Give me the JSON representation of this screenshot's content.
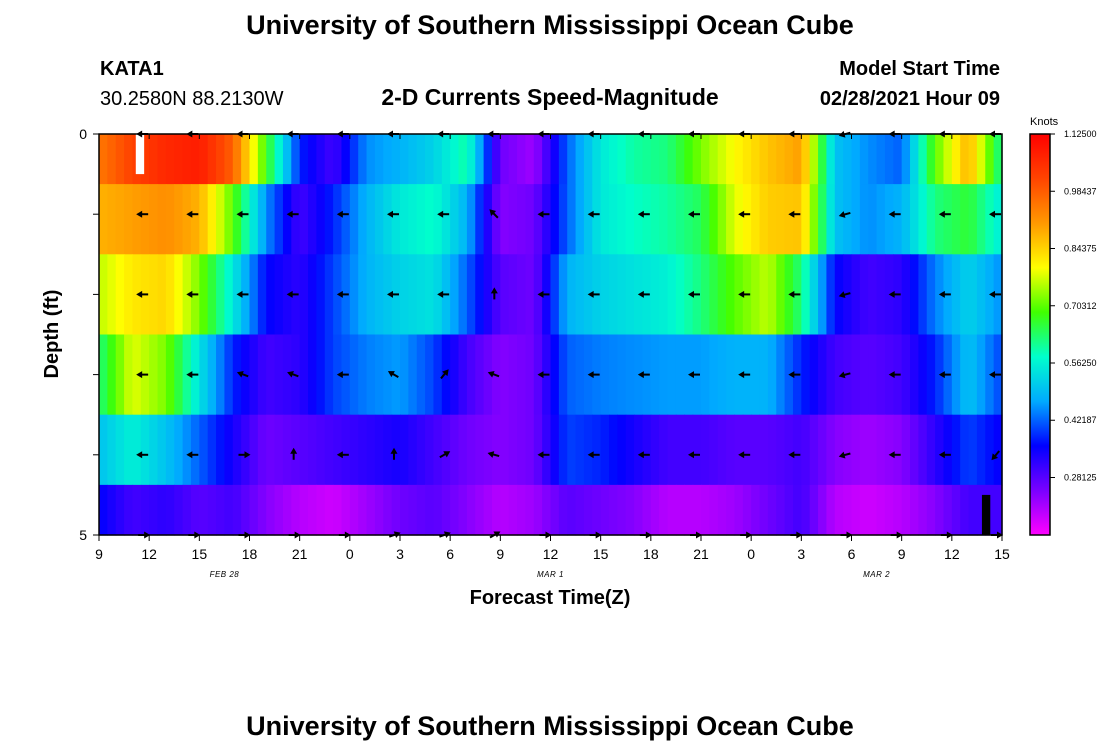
{
  "header": {
    "title": "University of Southern Mississippi Ocean Cube",
    "station": "KATA1",
    "coords": "30.2580N 88.2130W",
    "subtitle": "2-D Currents Speed-Magnitude",
    "model_label": "Model Start Time",
    "model_time": "02/28/2021 Hour 09"
  },
  "footer": {
    "title": "University of Southern Mississippi Ocean Cube"
  },
  "chart_data": {
    "type": "heatmap",
    "title": "2-D Currents Speed-Magnitude",
    "xlabel": "Forecast Time(Z)",
    "ylabel": "Depth (ft)",
    "x_tick_labels": [
      "9",
      "12",
      "15",
      "18",
      "21",
      "0",
      "3",
      "6",
      "9",
      "12",
      "15",
      "18",
      "21",
      "0",
      "3",
      "6",
      "9",
      "12",
      "15"
    ],
    "x_hours": [
      0,
      3,
      6,
      9,
      12,
      15,
      18,
      21,
      24,
      27,
      30,
      33,
      36,
      39,
      42,
      45,
      48,
      51,
      54
    ],
    "date_labels": [
      {
        "text": "FEB 28",
        "hour": 7.5
      },
      {
        "text": "MAR 1",
        "hour": 27
      },
      {
        "text": "MAR 2",
        "hour": 46.5
      }
    ],
    "xlim": [
      0,
      54
    ],
    "ylim": [
      5,
      0
    ],
    "y_tick_labels": [
      "0",
      "5"
    ],
    "y_ticks": [
      0,
      1,
      2,
      3,
      4,
      5
    ],
    "colorbar": {
      "unit": "Knots",
      "labels": [
        "1.12500",
        "0.98437",
        "0.84375",
        "0.70312",
        "0.56250",
        "0.42187",
        "0.28125"
      ],
      "min": 0.14,
      "max": 1.125,
      "colors": [
        "#ff00ff",
        "#7a00ff",
        "#0000ff",
        "#00aaff",
        "#00ffcc",
        "#40ff00",
        "#ffff00",
        "#ff9900",
        "#ff4400",
        "#ff0000"
      ]
    },
    "depth_rows": [
      0.25,
      1,
      2,
      3,
      4,
      4.75
    ],
    "speed_hours": [
      0,
      2,
      4,
      6,
      8,
      10,
      12,
      14,
      16,
      18,
      20,
      22,
      24,
      26,
      28,
      30,
      32,
      34,
      36,
      38,
      40,
      42,
      44,
      46,
      48,
      50,
      52,
      54
    ],
    "speed": [
      [
        0.95,
        1.02,
        1.06,
        1.08,
        0.98,
        0.68,
        0.38,
        0.3,
        0.45,
        0.48,
        0.52,
        0.6,
        0.26,
        0.22,
        0.42,
        0.55,
        0.6,
        0.62,
        0.72,
        0.8,
        0.86,
        0.9,
        0.5,
        0.45,
        0.42,
        0.7,
        0.88,
        0.6
      ],
      [
        0.88,
        0.9,
        0.92,
        0.88,
        0.7,
        0.45,
        0.3,
        0.38,
        0.48,
        0.55,
        0.58,
        0.48,
        0.24,
        0.26,
        0.42,
        0.55,
        0.58,
        0.6,
        0.64,
        0.78,
        0.85,
        0.86,
        0.5,
        0.45,
        0.48,
        0.62,
        0.66,
        0.55
      ],
      [
        0.76,
        0.82,
        0.84,
        0.72,
        0.55,
        0.36,
        0.32,
        0.4,
        0.48,
        0.52,
        0.54,
        0.42,
        0.28,
        0.26,
        0.48,
        0.52,
        0.54,
        0.56,
        0.62,
        0.7,
        0.76,
        0.62,
        0.36,
        0.3,
        0.32,
        0.44,
        0.52,
        0.45
      ],
      [
        0.62,
        0.78,
        0.72,
        0.54,
        0.38,
        0.3,
        0.32,
        0.4,
        0.44,
        0.46,
        0.4,
        0.3,
        0.24,
        0.26,
        0.42,
        0.44,
        0.45,
        0.46,
        0.46,
        0.48,
        0.48,
        0.38,
        0.3,
        0.28,
        0.3,
        0.38,
        0.5,
        0.4
      ],
      [
        0.5,
        0.56,
        0.5,
        0.42,
        0.34,
        0.26,
        0.28,
        0.3,
        0.32,
        0.34,
        0.3,
        0.26,
        0.24,
        0.26,
        0.4,
        0.38,
        0.34,
        0.3,
        0.3,
        0.28,
        0.28,
        0.3,
        0.24,
        0.22,
        0.24,
        0.32,
        0.4,
        0.35
      ],
      [
        0.36,
        0.3,
        0.32,
        0.28,
        0.3,
        0.24,
        0.2,
        0.18,
        0.22,
        0.26,
        0.28,
        0.24,
        0.2,
        0.22,
        0.28,
        0.26,
        0.24,
        0.2,
        0.2,
        0.22,
        0.26,
        0.3,
        0.2,
        0.18,
        0.2,
        0.24,
        0.3,
        0.3
      ]
    ],
    "arrow_hours": [
      3,
      6,
      9,
      12,
      15,
      18,
      21,
      24,
      27,
      30,
      33,
      36,
      39,
      42,
      45,
      48,
      51,
      54
    ],
    "arrow_depths": [
      0,
      1,
      2,
      3,
      4,
      5
    ],
    "arrow_dirs_deg": [
      [
        180,
        180,
        180,
        180,
        180,
        180,
        180,
        180,
        180,
        180,
        180,
        180,
        180,
        180,
        195,
        180,
        180,
        180
      ],
      [
        180,
        180,
        180,
        180,
        180,
        180,
        180,
        135,
        180,
        180,
        180,
        180,
        180,
        180,
        195,
        180,
        180,
        180
      ],
      [
        180,
        180,
        180,
        180,
        180,
        180,
        180,
        90,
        180,
        180,
        180,
        180,
        180,
        180,
        195,
        180,
        180,
        180
      ],
      [
        180,
        180,
        160,
        160,
        180,
        150,
        50,
        160,
        180,
        180,
        180,
        180,
        180,
        180,
        195,
        180,
        180,
        180
      ],
      [
        180,
        180,
        0,
        90,
        180,
        90,
        30,
        165,
        180,
        180,
        180,
        180,
        180,
        180,
        195,
        180,
        180,
        230
      ],
      [
        0,
        0,
        0,
        0,
        0,
        20,
        20,
        30,
        0,
        0,
        0,
        0,
        0,
        0,
        0,
        0,
        0,
        0
      ]
    ],
    "missing_cells": [
      {
        "hour_start": 2.2,
        "hour_end": 2.7,
        "depth_start": 0,
        "depth_end": 0.5,
        "color": "#ffffff"
      },
      {
        "hour_start": 52.8,
        "hour_end": 53.3,
        "depth_start": 4.5,
        "depth_end": 5,
        "color": "#000000"
      }
    ]
  }
}
